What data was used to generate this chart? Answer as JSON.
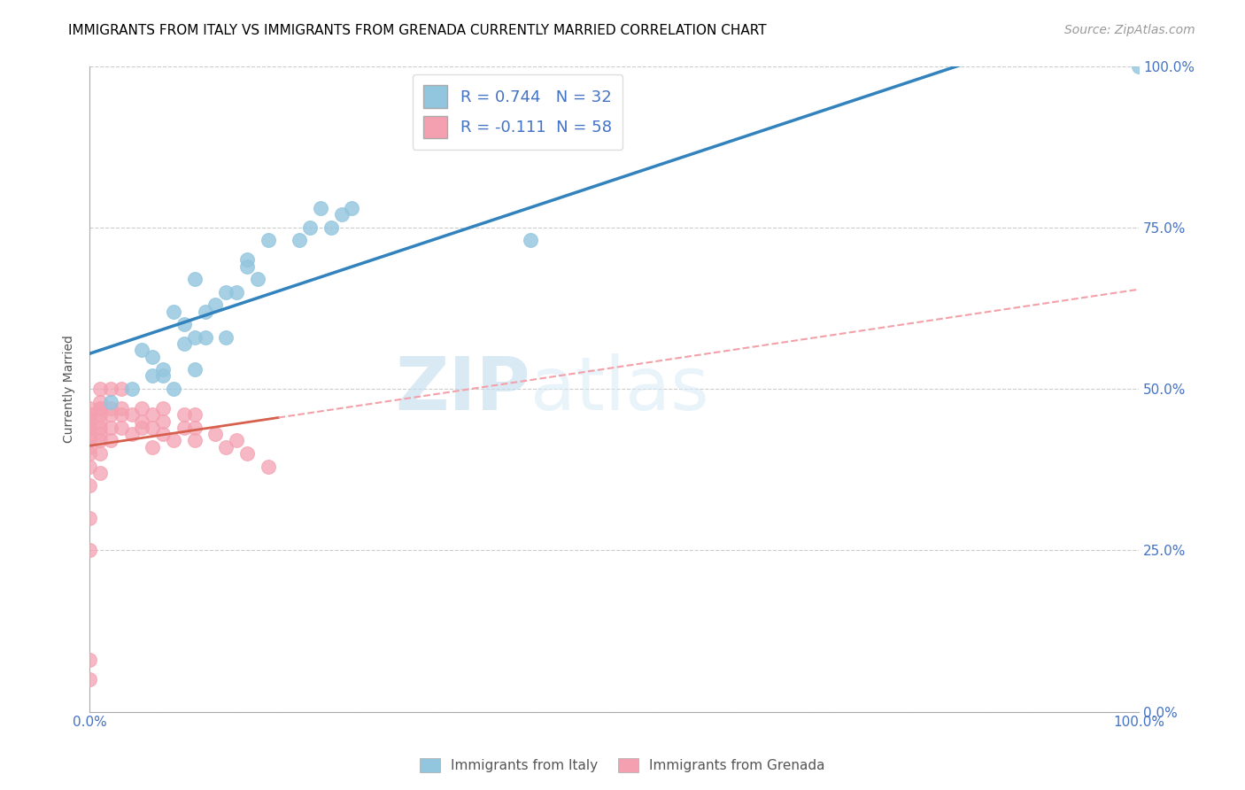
{
  "title": "IMMIGRANTS FROM ITALY VS IMMIGRANTS FROM GRENADA CURRENTLY MARRIED CORRELATION CHART",
  "source": "Source: ZipAtlas.com",
  "ylabel": "Currently Married",
  "legend_italy": "Immigrants from Italy",
  "legend_grenada": "Immigrants from Grenada",
  "r_italy": 0.744,
  "n_italy": 32,
  "r_grenada": -0.111,
  "n_grenada": 58,
  "xlim": [
    0.0,
    1.0
  ],
  "ylim": [
    0.0,
    1.0
  ],
  "xticks": [
    0.0,
    0.1,
    0.2,
    0.3,
    0.4,
    0.5,
    0.6,
    0.7,
    0.8,
    0.9,
    1.0
  ],
  "xticklabels": [
    "0.0%",
    "",
    "",
    "",
    "",
    "",
    "",
    "",
    "",
    "",
    "100.0%"
  ],
  "yticks_right": [
    0.0,
    0.25,
    0.5,
    0.75,
    1.0
  ],
  "yticklabels_right": [
    "0.0%",
    "25.0%",
    "50.0%",
    "75.0%",
    "100.0%"
  ],
  "yticks_left": [
    0.0,
    0.25,
    0.5,
    0.75,
    1.0
  ],
  "italy_color": "#92c5de",
  "grenada_color": "#f4a0b0",
  "italy_line_color": "#3182bd",
  "grenada_line_solid": "#d6604d",
  "grenada_line_dash": "#f4a0a8",
  "watermark_zip": "ZIP",
  "watermark_atlas": "atlas",
  "italy_x": [
    0.02,
    0.04,
    0.05,
    0.06,
    0.06,
    0.07,
    0.07,
    0.08,
    0.08,
    0.09,
    0.09,
    0.1,
    0.1,
    0.1,
    0.11,
    0.11,
    0.12,
    0.13,
    0.13,
    0.14,
    0.15,
    0.15,
    0.16,
    0.17,
    0.2,
    0.21,
    0.22,
    0.23,
    0.24,
    0.25,
    0.42,
    1.0
  ],
  "italy_y": [
    0.48,
    0.5,
    0.56,
    0.52,
    0.55,
    0.52,
    0.53,
    0.5,
    0.62,
    0.57,
    0.6,
    0.53,
    0.58,
    0.67,
    0.58,
    0.62,
    0.63,
    0.58,
    0.65,
    0.65,
    0.69,
    0.7,
    0.67,
    0.73,
    0.73,
    0.75,
    0.78,
    0.75,
    0.77,
    0.78,
    0.73,
    1.0
  ],
  "grenada_x": [
    0.0,
    0.0,
    0.0,
    0.0,
    0.0,
    0.0,
    0.0,
    0.0,
    0.0,
    0.0,
    0.0,
    0.0,
    0.0,
    0.0,
    0.0,
    0.01,
    0.01,
    0.01,
    0.01,
    0.01,
    0.01,
    0.01,
    0.01,
    0.01,
    0.01,
    0.01,
    0.02,
    0.02,
    0.02,
    0.02,
    0.02,
    0.03,
    0.03,
    0.03,
    0.03,
    0.04,
    0.04,
    0.05,
    0.05,
    0.05,
    0.06,
    0.06,
    0.06,
    0.07,
    0.07,
    0.07,
    0.08,
    0.09,
    0.09,
    0.1,
    0.1,
    0.1,
    0.12,
    0.13,
    0.14,
    0.15,
    0.17,
    0.0
  ],
  "grenada_y": [
    0.05,
    0.25,
    0.3,
    0.35,
    0.38,
    0.4,
    0.41,
    0.42,
    0.43,
    0.44,
    0.44,
    0.45,
    0.46,
    0.46,
    0.47,
    0.37,
    0.4,
    0.42,
    0.43,
    0.44,
    0.45,
    0.46,
    0.47,
    0.47,
    0.48,
    0.5,
    0.42,
    0.44,
    0.46,
    0.47,
    0.5,
    0.44,
    0.46,
    0.47,
    0.5,
    0.43,
    0.46,
    0.44,
    0.45,
    0.47,
    0.41,
    0.44,
    0.46,
    0.43,
    0.45,
    0.47,
    0.42,
    0.44,
    0.46,
    0.42,
    0.44,
    0.46,
    0.43,
    0.41,
    0.42,
    0.4,
    0.38,
    0.08
  ],
  "title_fontsize": 11,
  "axis_label_fontsize": 10,
  "tick_fontsize": 11,
  "legend_fontsize": 13,
  "source_fontsize": 10
}
